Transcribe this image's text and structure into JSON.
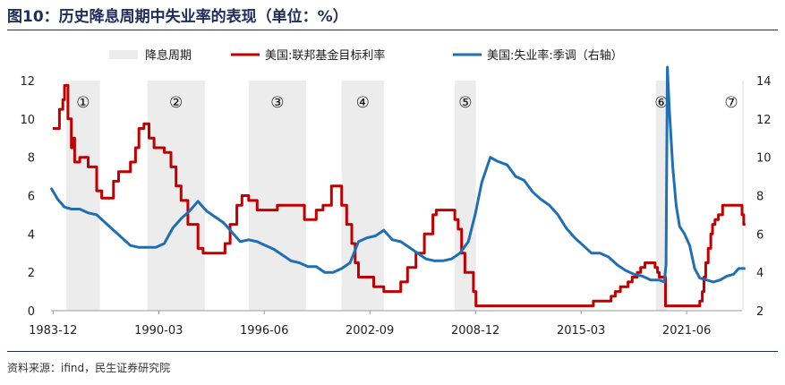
{
  "header": {
    "title": "图10：历史降息周期中失业率的表现（单位：%）"
  },
  "footer": {
    "source": "资料来源：ifind，民生证券研究院"
  },
  "chart_data": {
    "type": "line",
    "legend": {
      "placement": "top",
      "items": [
        {
          "label": "降息周期",
          "kind": "band",
          "color": "#ececec"
        },
        {
          "label": "美国:联邦基金目标利率",
          "kind": "line",
          "color": "#c00000"
        },
        {
          "label": "美国:失业率:季调（右轴）",
          "kind": "line",
          "color": "#1f6fb4"
        }
      ]
    },
    "x_range": [
      1983.8,
      2024.7
    ],
    "x_tick_labels": [
      {
        "label": "1983-12",
        "x": 1983.92
      },
      {
        "label": "1990-03",
        "x": 1990.17
      },
      {
        "label": "1996-06",
        "x": 1996.42
      },
      {
        "label": "2002-09",
        "x": 2002.67
      },
      {
        "label": "2008-12",
        "x": 2008.92
      },
      {
        "label": "2015-03",
        "x": 2015.17
      },
      {
        "label": "2021-06",
        "x": 2021.42
      }
    ],
    "y_left": {
      "min": 0,
      "max": 12,
      "ticks": [
        "0",
        "2",
        "4",
        "6",
        "8",
        "10",
        "12"
      ]
    },
    "y_right": {
      "min": 2,
      "max": 14,
      "ticks": [
        "2",
        "4",
        "6",
        "8",
        "10",
        "12",
        "14"
      ]
    },
    "cut_cycles": [
      {
        "label": "①",
        "start": 1984.7,
        "end": 1986.7
      },
      {
        "label": "②",
        "start": 1989.5,
        "end": 1992.9
      },
      {
        "label": "③",
        "start": 1995.5,
        "end": 1998.9
      },
      {
        "label": "④",
        "start": 2001.0,
        "end": 2003.5
      },
      {
        "label": "⑤",
        "start": 2007.7,
        "end": 2008.95
      },
      {
        "label": "⑥",
        "start": 2019.6,
        "end": 2020.25
      },
      {
        "label": "⑦",
        "start": 2024.7,
        "end": 2024.95
      }
    ],
    "series": [
      {
        "name": "美国:联邦基金目标利率",
        "axis": "left",
        "color": "#c00000",
        "step": true,
        "points": [
          [
            1983.9,
            9.5
          ],
          [
            1984.2,
            9.5
          ],
          [
            1984.3,
            10.5
          ],
          [
            1984.5,
            11.0
          ],
          [
            1984.6,
            11.75
          ],
          [
            1984.8,
            10.0
          ],
          [
            1985.0,
            8.5
          ],
          [
            1985.1,
            9.0
          ],
          [
            1985.2,
            7.75
          ],
          [
            1985.5,
            8.0
          ],
          [
            1986.0,
            7.5
          ],
          [
            1986.5,
            6.25
          ],
          [
            1986.8,
            5.875
          ],
          [
            1987.5,
            6.75
          ],
          [
            1987.8,
            7.25
          ],
          [
            1988.5,
            7.75
          ],
          [
            1988.8,
            8.5
          ],
          [
            1989.0,
            9.5
          ],
          [
            1989.3,
            9.75
          ],
          [
            1989.6,
            9.0
          ],
          [
            1989.9,
            8.5
          ],
          [
            1990.5,
            8.25
          ],
          [
            1990.9,
            7.5
          ],
          [
            1991.2,
            6.5
          ],
          [
            1991.5,
            5.75
          ],
          [
            1991.9,
            4.5
          ],
          [
            1992.5,
            3.25
          ],
          [
            1992.8,
            3.0
          ],
          [
            1994.1,
            3.5
          ],
          [
            1994.4,
            4.5
          ],
          [
            1994.8,
            5.5
          ],
          [
            1995.1,
            6.0
          ],
          [
            1995.5,
            5.75
          ],
          [
            1996.0,
            5.25
          ],
          [
            1997.2,
            5.5
          ],
          [
            1998.8,
            4.75
          ],
          [
            1999.5,
            5.25
          ],
          [
            1999.9,
            5.5
          ],
          [
            2000.4,
            6.5
          ],
          [
            2001.0,
            5.5
          ],
          [
            2001.3,
            4.5
          ],
          [
            2001.6,
            3.5
          ],
          [
            2001.8,
            2.5
          ],
          [
            2002.0,
            1.75
          ],
          [
            2002.9,
            1.25
          ],
          [
            2003.5,
            1.0
          ],
          [
            2004.5,
            1.5
          ],
          [
            2004.9,
            2.25
          ],
          [
            2005.4,
            3.0
          ],
          [
            2005.9,
            4.0
          ],
          [
            2006.4,
            5.0
          ],
          [
            2006.6,
            5.25
          ],
          [
            2007.7,
            4.75
          ],
          [
            2007.9,
            4.25
          ],
          [
            2008.1,
            3.0
          ],
          [
            2008.3,
            2.0
          ],
          [
            2008.8,
            1.0
          ],
          [
            2008.95,
            0.25
          ],
          [
            2015.9,
            0.5
          ],
          [
            2016.95,
            0.75
          ],
          [
            2017.2,
            1.0
          ],
          [
            2017.5,
            1.25
          ],
          [
            2017.95,
            1.5
          ],
          [
            2018.2,
            1.75
          ],
          [
            2018.5,
            2.0
          ],
          [
            2018.7,
            2.25
          ],
          [
            2018.95,
            2.5
          ],
          [
            2019.55,
            2.25
          ],
          [
            2019.7,
            2.0
          ],
          [
            2019.8,
            1.75
          ],
          [
            2020.17,
            0.25
          ],
          [
            2022.2,
            0.5
          ],
          [
            2022.35,
            1.0
          ],
          [
            2022.45,
            1.75
          ],
          [
            2022.55,
            2.5
          ],
          [
            2022.7,
            3.25
          ],
          [
            2022.85,
            4.0
          ],
          [
            2022.95,
            4.5
          ],
          [
            2023.1,
            4.75
          ],
          [
            2023.3,
            5.0
          ],
          [
            2023.55,
            5.5
          ],
          [
            2024.7,
            5.0
          ],
          [
            2024.8,
            4.5
          ],
          [
            2024.9,
            4.5
          ]
        ]
      },
      {
        "name": "美国:失业率:季调（右轴）",
        "axis": "right",
        "color": "#1f6fb4",
        "step": false,
        "points": [
          [
            1983.8,
            8.4
          ],
          [
            1984.2,
            7.8
          ],
          [
            1984.6,
            7.4
          ],
          [
            1985.0,
            7.3
          ],
          [
            1985.5,
            7.3
          ],
          [
            1986.0,
            7.1
          ],
          [
            1986.5,
            7.0
          ],
          [
            1987.0,
            6.6
          ],
          [
            1987.5,
            6.2
          ],
          [
            1988.0,
            5.8
          ],
          [
            1988.5,
            5.4
          ],
          [
            1989.0,
            5.3
          ],
          [
            1989.5,
            5.3
          ],
          [
            1990.0,
            5.3
          ],
          [
            1990.5,
            5.5
          ],
          [
            1991.0,
            6.3
          ],
          [
            1991.5,
            6.8
          ],
          [
            1992.0,
            7.2
          ],
          [
            1992.5,
            7.7
          ],
          [
            1993.0,
            7.2
          ],
          [
            1993.5,
            6.9
          ],
          [
            1994.0,
            6.6
          ],
          [
            1994.5,
            6.1
          ],
          [
            1995.0,
            5.6
          ],
          [
            1995.5,
            5.7
          ],
          [
            1996.0,
            5.6
          ],
          [
            1996.5,
            5.4
          ],
          [
            1997.0,
            5.2
          ],
          [
            1997.5,
            4.9
          ],
          [
            1998.0,
            4.6
          ],
          [
            1998.5,
            4.5
          ],
          [
            1999.0,
            4.3
          ],
          [
            1999.5,
            4.3
          ],
          [
            2000.0,
            4.0
          ],
          [
            2000.5,
            4.0
          ],
          [
            2001.0,
            4.2
          ],
          [
            2001.5,
            4.5
          ],
          [
            2002.0,
            5.6
          ],
          [
            2002.5,
            5.8
          ],
          [
            2003.0,
            5.9
          ],
          [
            2003.5,
            6.2
          ],
          [
            2004.0,
            5.7
          ],
          [
            2004.5,
            5.6
          ],
          [
            2005.0,
            5.3
          ],
          [
            2005.5,
            5.0
          ],
          [
            2006.0,
            4.7
          ],
          [
            2006.5,
            4.6
          ],
          [
            2007.0,
            4.6
          ],
          [
            2007.5,
            4.7
          ],
          [
            2008.0,
            5.0
          ],
          [
            2008.5,
            5.6
          ],
          [
            2008.9,
            7.0
          ],
          [
            2009.3,
            8.7
          ],
          [
            2009.8,
            10.0
          ],
          [
            2010.2,
            9.8
          ],
          [
            2010.8,
            9.6
          ],
          [
            2011.3,
            9.0
          ],
          [
            2011.8,
            8.8
          ],
          [
            2012.3,
            8.2
          ],
          [
            2012.8,
            7.8
          ],
          [
            2013.3,
            7.5
          ],
          [
            2013.8,
            7.0
          ],
          [
            2014.3,
            6.3
          ],
          [
            2014.8,
            5.8
          ],
          [
            2015.3,
            5.4
          ],
          [
            2015.8,
            5.0
          ],
          [
            2016.3,
            5.0
          ],
          [
            2016.8,
            4.8
          ],
          [
            2017.3,
            4.4
          ],
          [
            2017.8,
            4.1
          ],
          [
            2018.3,
            3.9
          ],
          [
            2018.8,
            3.8
          ],
          [
            2019.3,
            3.6
          ],
          [
            2019.8,
            3.6
          ],
          [
            2020.1,
            3.5
          ],
          [
            2020.2,
            4.4
          ],
          [
            2020.28,
            14.7
          ],
          [
            2020.4,
            12.5
          ],
          [
            2020.6,
            9.5
          ],
          [
            2020.8,
            7.5
          ],
          [
            2021.0,
            6.4
          ],
          [
            2021.3,
            6.0
          ],
          [
            2021.6,
            5.4
          ],
          [
            2021.9,
            4.2
          ],
          [
            2022.2,
            3.7
          ],
          [
            2022.6,
            3.6
          ],
          [
            2023.0,
            3.5
          ],
          [
            2023.4,
            3.6
          ],
          [
            2023.8,
            3.8
          ],
          [
            2024.2,
            3.9
          ],
          [
            2024.5,
            4.2
          ],
          [
            2024.9,
            4.2
          ]
        ]
      }
    ]
  }
}
